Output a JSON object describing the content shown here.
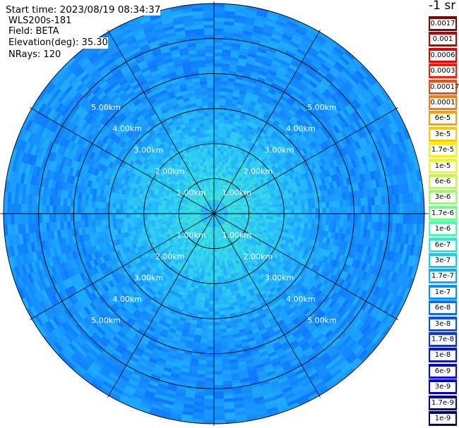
{
  "header": {
    "start_time": "Start time: 2023/08/19 08:34:37",
    "instrument": "WLS200s-181",
    "field": "Field: BETA",
    "elevation": "Elevation(deg): 35.30",
    "nrays": "NRays: 120"
  },
  "colorbar": {
    "unit_label": "-1 sr",
    "labels": [
      "0.0017",
      "0.001",
      "0.0006",
      "0.0003",
      "0.00017",
      "0.0001",
      "6e-5",
      "3e-5",
      "1.7e-5",
      "1e-5",
      "6e-6",
      "3e-6",
      "1.7e-6",
      "1e-6",
      "6e-7",
      "3e-7",
      "1.7e-7",
      "1e-7",
      "6e-8",
      "3e-8",
      "1.7e-8",
      "1e-8",
      "6e-9",
      "3e-9",
      "1.7e-9",
      "1e-9"
    ],
    "colors": [
      "#800000",
      "#b80000",
      "#e00000",
      "#ff1a00",
      "#ff4a00",
      "#ff7a00",
      "#ffa000",
      "#ffc800",
      "#fff000",
      "#e8ff10",
      "#c0ff38",
      "#98ff60",
      "#70ff88",
      "#48ffb0",
      "#20f0d8",
      "#00d0ff",
      "#00b0ff",
      "#0090ff",
      "#0070ff",
      "#0050ff",
      "#0030ff",
      "#0010ff",
      "#0000e8",
      "#0000c0",
      "#000098",
      "#000070"
    ]
  },
  "chart_data": {
    "type": "heatmap",
    "projection": "polar-ppi",
    "field": "BETA",
    "max_range_km": 6.0,
    "range_rings_km": [
      1.0,
      2.0,
      3.0,
      4.0,
      5.0
    ],
    "ring_labels": [
      "1.00km",
      "2.00km",
      "3.00km",
      "4.00km",
      "5.00km"
    ],
    "azimuth_spokes_deg": [
      0,
      30,
      60,
      90,
      120,
      150,
      180,
      210,
      240,
      270,
      300,
      330
    ],
    "n_rays": 120,
    "color_scale": "log",
    "value_range": [
      1e-09,
      0.0017
    ],
    "pattern": "near range 1.7e-7 to 6e-7, decreasing to 3e-8 to 1.7e-7 at far range"
  }
}
